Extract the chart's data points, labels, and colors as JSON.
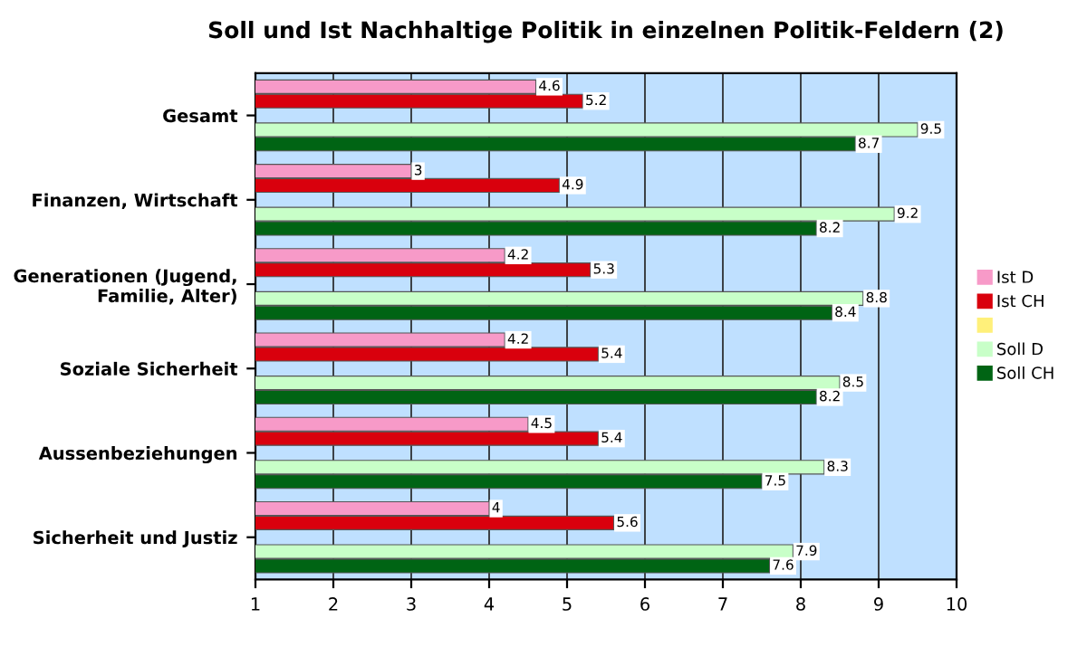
{
  "chart_data": {
    "type": "bar",
    "orientation": "horizontal",
    "title": "Soll und Ist Nachhaltige Politik in einzelnen Politik-Feldern (2)",
    "categories": [
      "Gesamt",
      "Finanzen, Wirtschaft",
      "Generationen (Jugend,\nFamilie, Alter)",
      "Soziale Sicherheit",
      "Aussenbeziehungen",
      "Sicherheit und Justiz"
    ],
    "series": [
      {
        "name": "Ist D",
        "color": "#f79ac8",
        "values": [
          4.6,
          3,
          4.2,
          4.2,
          4.5,
          4
        ]
      },
      {
        "name": "Ist CH",
        "color": "#d9000d",
        "values": [
          5.2,
          4.9,
          5.3,
          5.4,
          5.4,
          5.6
        ]
      },
      {
        "color": "#fff07a",
        "values": [
          null,
          null,
          null,
          null,
          null,
          null
        ]
      },
      {
        "name": "Soll D",
        "color": "#c8ffc8",
        "values": [
          9.5,
          9.2,
          8.8,
          8.5,
          8.3,
          7.9
        ]
      },
      {
        "name": "Soll CH",
        "color": "#006414",
        "values": [
          8.7,
          8.2,
          8.4,
          8.2,
          7.5,
          7.6
        ]
      }
    ],
    "xlim": [
      1,
      10
    ],
    "xticks": [
      1,
      2,
      3,
      4,
      5,
      6,
      7,
      8,
      9,
      10
    ],
    "grid": "x",
    "legend": "right",
    "data_labels": true
  }
}
